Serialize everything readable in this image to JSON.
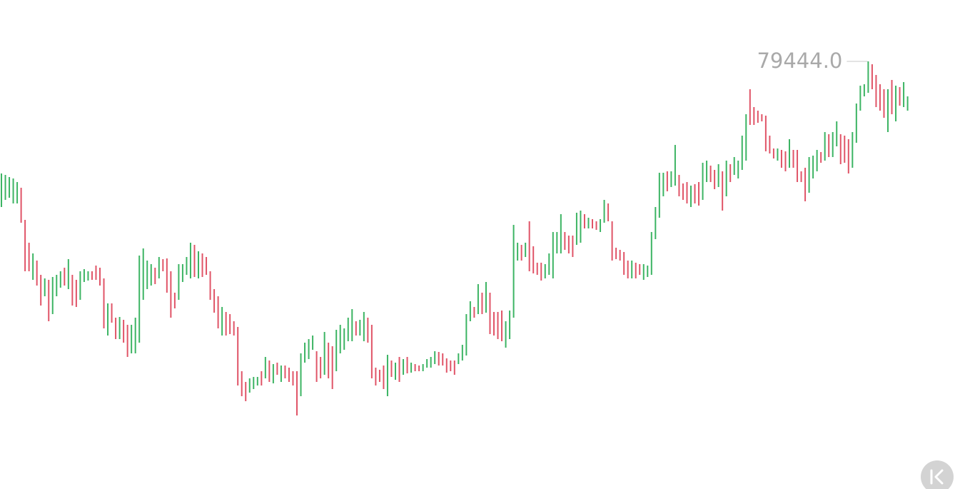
{
  "chart_data": {
    "type": "hlbar",
    "highs": [
      77874,
      77854,
      77824,
      77804,
      77754,
      77674,
      77224,
      76904,
      76754,
      76654,
      76454,
      76404,
      76384,
      76424,
      76454,
      76504,
      76554,
      76674,
      76454,
      76384,
      76504,
      76534,
      76504,
      76504,
      76584,
      76554,
      76404,
      76054,
      76054,
      75854,
      75864,
      75824,
      75754,
      75754,
      75854,
      76724,
      76824,
      76654,
      76604,
      76554,
      76704,
      76674,
      76684,
      76504,
      76204,
      76604,
      76604,
      76704,
      76904,
      76874,
      76784,
      76754,
      76704,
      76504,
      76254,
      76154,
      76004,
      75934,
      75904,
      75804,
      75724,
      75104,
      74954,
      75004,
      75024,
      75024,
      75104,
      75304,
      75254,
      75204,
      75224,
      75184,
      75184,
      75154,
      75104,
      75104,
      75354,
      75504,
      75554,
      75604,
      75384,
      75304,
      75654,
      75504,
      75454,
      75684,
      75754,
      75704,
      75854,
      75974,
      75804,
      75824,
      75934,
      75854,
      75754,
      75154,
      75124,
      75184,
      75334,
      75254,
      75224,
      75304,
      75274,
      75304,
      75224,
      75204,
      75184,
      75204,
      75274,
      75304,
      75384,
      75374,
      75354,
      75284,
      75254,
      75254,
      75354,
      75474,
      75904,
      76084,
      76004,
      76324,
      76204,
      76354,
      76204,
      75934,
      75934,
      75954,
      75804,
      75954,
      77154,
      76904,
      76874,
      76904,
      77204,
      76854,
      76624,
      76624,
      76604,
      76754,
      77054,
      77054,
      77304,
      77054,
      77004,
      77004,
      77324,
      77354,
      77304,
      77254,
      77234,
      77204,
      77234,
      77504,
      77454,
      77204,
      76834,
      76804,
      76774,
      76654,
      76654,
      76624,
      76604,
      76604,
      76584,
      77054,
      77404,
      77884,
      77884,
      77904,
      77904,
      78274,
      77854,
      77734,
      77754,
      77704,
      77724,
      77754,
      78024,
      78054,
      77984,
      77924,
      78004,
      77904,
      78054,
      78004,
      78104,
      78054,
      78404,
      78704,
      79054,
      78804,
      78754,
      78704,
      78684,
      78404,
      78224,
      78224,
      78204,
      78184,
      78354,
      78204,
      78204,
      77904,
      77954,
      78104,
      78124,
      78204,
      78174,
      78454,
      78424,
      78454,
      78604,
      78424,
      78404,
      78354,
      78454,
      78854,
      79104,
      79124,
      79444,
      79404,
      79254,
      79124,
      79054,
      79054,
      79184,
      79104,
      79084,
      79154,
      78954
    ],
    "lows": [
      77404,
      77504,
      77534,
      77454,
      77454,
      77184,
      76504,
      76504,
      76384,
      76304,
      76024,
      76154,
      75804,
      75904,
      76154,
      76274,
      76304,
      76254,
      76024,
      76004,
      76104,
      76354,
      76374,
      76384,
      76384,
      76304,
      75704,
      75604,
      75784,
      75554,
      75554,
      75504,
      75304,
      75354,
      75354,
      75504,
      76104,
      76254,
      76304,
      76324,
      76404,
      76504,
      76204,
      75854,
      75984,
      76104,
      76354,
      76454,
      76404,
      76424,
      76404,
      76424,
      76454,
      76104,
      75924,
      75704,
      75604,
      75604,
      75624,
      75604,
      74904,
      74754,
      74684,
      74804,
      74854,
      74904,
      74904,
      75004,
      74954,
      74934,
      75054,
      74954,
      75004,
      74954,
      74904,
      74484,
      74754,
      75224,
      75274,
      75404,
      74954,
      75004,
      75054,
      75004,
      74854,
      75104,
      75354,
      75404,
      75524,
      75524,
      75604,
      75604,
      75524,
      75504,
      75004,
      74904,
      74954,
      74854,
      74754,
      75024,
      74984,
      74954,
      75054,
      75074,
      75084,
      75104,
      75104,
      75104,
      75154,
      75154,
      75204,
      75184,
      75184,
      75084,
      75104,
      75054,
      75204,
      75254,
      75324,
      75804,
      75854,
      75904,
      75904,
      75924,
      75624,
      75604,
      75554,
      75524,
      75434,
      75554,
      75854,
      76654,
      76654,
      76704,
      76504,
      76474,
      76454,
      76374,
      76404,
      76454,
      76404,
      76754,
      76754,
      76804,
      76754,
      76704,
      76874,
      76904,
      77104,
      77104,
      77104,
      77084,
      77054,
      77184,
      77204,
      76654,
      76674,
      76654,
      76454,
      76404,
      76404,
      76404,
      76454,
      76384,
      76424,
      76454,
      76954,
      77254,
      77554,
      77624,
      77684,
      77704,
      77554,
      77504,
      77454,
      77404,
      77454,
      77424,
      77504,
      77754,
      77754,
      77654,
      77684,
      77354,
      77554,
      77754,
      77854,
      77804,
      77924,
      78054,
      78554,
      78554,
      78584,
      78604,
      78184,
      78154,
      78084,
      78054,
      77954,
      77904,
      77954,
      77954,
      77754,
      77754,
      77484,
      77604,
      77804,
      77904,
      78024,
      78054,
      78104,
      78104,
      78254,
      78004,
      78024,
      77874,
      77954,
      78304,
      78754,
      78954,
      79004,
      79054,
      78804,
      78754,
      78654,
      78454,
      78704,
      78604,
      78824,
      78804,
      78754
    ],
    "up": [
      true,
      true,
      true,
      true,
      true,
      false,
      false,
      false,
      true,
      false,
      false,
      true,
      false,
      true,
      true,
      true,
      false,
      true,
      false,
      false,
      true,
      true,
      true,
      false,
      false,
      false,
      false,
      true,
      false,
      false,
      true,
      false,
      false,
      true,
      true,
      true,
      true,
      true,
      true,
      false,
      true,
      false,
      false,
      false,
      false,
      true,
      true,
      true,
      true,
      false,
      true,
      false,
      false,
      false,
      false,
      false,
      true,
      false,
      false,
      false,
      false,
      false,
      false,
      true,
      true,
      true,
      false,
      true,
      false,
      true,
      false,
      true,
      false,
      false,
      false,
      false,
      true,
      true,
      true,
      true,
      false,
      false,
      true,
      false,
      false,
      true,
      true,
      true,
      true,
      true,
      false,
      true,
      true,
      false,
      false,
      false,
      false,
      false,
      true,
      false,
      true,
      false,
      true,
      false,
      true,
      false,
      false,
      true,
      true,
      true,
      true,
      false,
      false,
      false,
      false,
      false,
      true,
      true,
      true,
      true,
      false,
      true,
      false,
      true,
      false,
      false,
      false,
      false,
      true,
      true,
      true,
      true,
      false,
      true,
      false,
      false,
      false,
      false,
      true,
      true,
      true,
      true,
      true,
      false,
      false,
      false,
      true,
      true,
      false,
      true,
      false,
      false,
      true,
      true,
      false,
      false,
      false,
      false,
      false,
      false,
      true,
      false,
      false,
      true,
      true,
      true,
      true,
      true,
      true,
      false,
      true,
      true,
      false,
      false,
      false,
      true,
      false,
      false,
      true,
      true,
      false,
      false,
      true,
      false,
      true,
      false,
      true,
      true,
      true,
      true,
      false,
      false,
      false,
      false,
      false,
      false,
      false,
      true,
      false,
      false,
      true,
      false,
      false,
      false,
      false,
      true,
      true,
      true,
      false,
      true,
      false,
      true,
      true,
      false,
      false,
      false,
      true,
      true,
      true,
      true,
      true,
      false,
      false,
      false,
      false,
      true,
      false,
      true,
      false,
      true,
      true
    ],
    "up_color": "#3cb463",
    "down_color": "#e05467",
    "ylim": [
      73454,
      80304
    ],
    "max_label": {
      "value": 79444,
      "label": "79444.0"
    }
  }
}
